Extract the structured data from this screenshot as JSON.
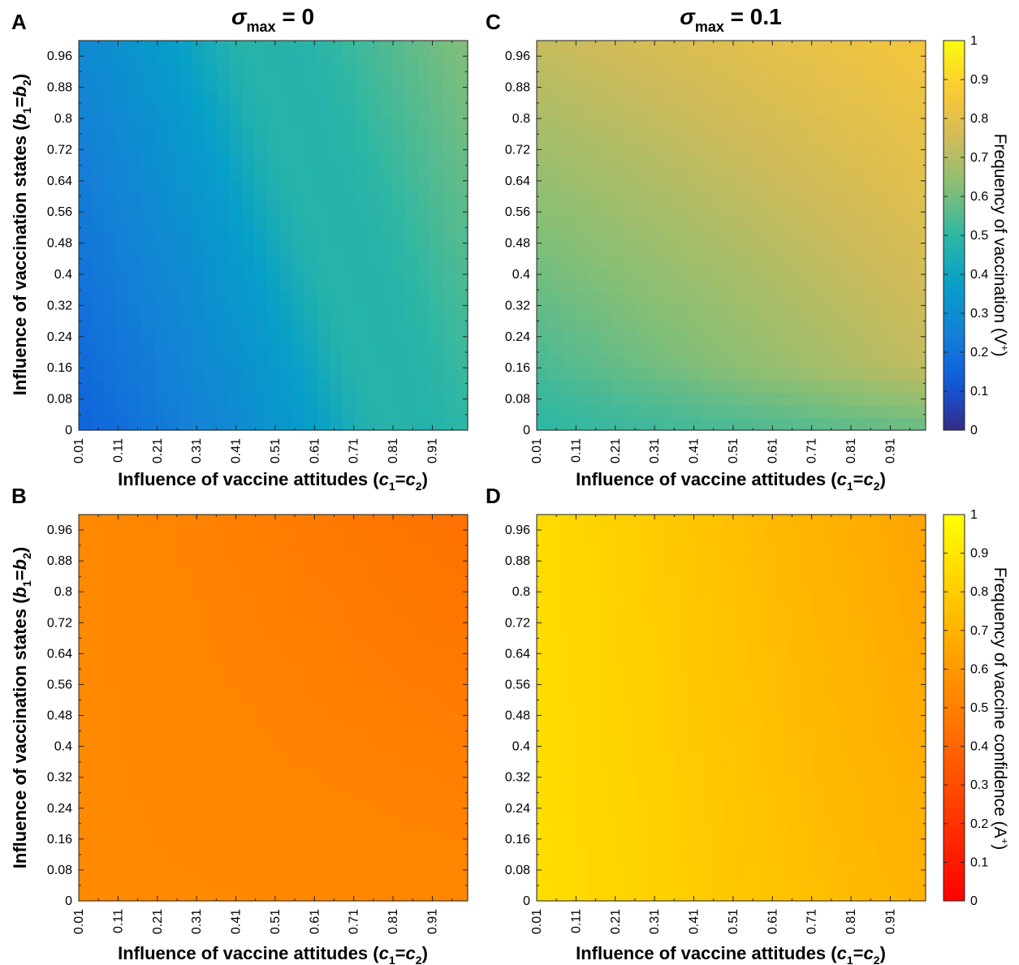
{
  "column_titles": [
    {
      "symbol": "σ",
      "subscript": "max",
      "rest": " = 0"
    },
    {
      "symbol": "σ",
      "subscript": "max",
      "rest": " = 0.1"
    }
  ],
  "panel_letters": [
    "A",
    "B",
    "C",
    "D"
  ],
  "xlabel": {
    "prefix": "Influence of vaccine attitudes (",
    "var1": "c",
    "sub1": "1",
    "eq": "=",
    "var2": "c",
    "sub2": "2",
    "suffix": ")"
  },
  "ylabel": {
    "prefix": "Influence of vaccination states (",
    "var1": "b",
    "sub1": "1",
    "eq": "=",
    "var2": "b",
    "sub2": "2",
    "suffix": ")"
  },
  "xticks": [
    "0.01",
    "0.11",
    "0.21",
    "0.31",
    "0.41",
    "0.51",
    "0.61",
    "0.71",
    "0.81",
    "0.91"
  ],
  "yticks": [
    "0",
    "0.08",
    "0.16",
    "0.24",
    "0.32",
    "0.4",
    "0.48",
    "0.56",
    "0.64",
    "0.72",
    "0.8",
    "0.88",
    "0.96"
  ],
  "colorbars": [
    {
      "label": "Frequency of vaccination (V",
      "label_sup": "+",
      "label_end": ")",
      "colormap": "parula",
      "ticks": [
        "0",
        "0.1",
        "0.2",
        "0.3",
        "0.4",
        "0.5",
        "0.6",
        "0.7",
        "0.8",
        "0.9",
        "1"
      ]
    },
    {
      "label": "Frequency of vaccine confidence (A",
      "label_sup": "+",
      "label_end": ")",
      "colormap": "autumn",
      "ticks": [
        "0",
        "0.1",
        "0.2",
        "0.3",
        "0.4",
        "0.5",
        "0.6",
        "0.7",
        "0.8",
        "0.9",
        "1"
      ]
    }
  ],
  "chart_data": [
    {
      "panel": "A",
      "type": "heatmap",
      "colormap": "parula",
      "zlim": [
        0,
        1
      ],
      "x_range": [
        0.01,
        1.0
      ],
      "y_range": [
        0,
        1.0
      ],
      "corners": {
        "bottom_left": 0.15,
        "top_left": 0.28,
        "bottom_right": 0.5,
        "top_right": 0.62
      },
      "ridge": {
        "value": 0.52,
        "x_at_bottom": 0.78,
        "x_at_top": 0.42,
        "width": 0.12
      }
    },
    {
      "panel": "B",
      "type": "heatmap",
      "colormap": "autumn",
      "zlim": [
        0,
        1
      ],
      "x_range": [
        0.01,
        1.0
      ],
      "y_range": [
        0,
        1.0
      ],
      "corners": {
        "bottom_left": 0.54,
        "top_left": 0.54,
        "bottom_right": 0.53,
        "top_right": 0.44
      }
    },
    {
      "panel": "C",
      "type": "heatmap",
      "colormap": "parula",
      "zlim": [
        0,
        1
      ],
      "x_range": [
        0.01,
        1.0
      ],
      "y_range": [
        0,
        1.0
      ],
      "corners": {
        "bottom_left": 0.5,
        "top_left": 0.73,
        "bottom_right": 0.7,
        "top_right": 0.85
      },
      "low_band": {
        "value": 0.5,
        "y_max": 0.16
      }
    },
    {
      "panel": "D",
      "type": "heatmap",
      "colormap": "autumn",
      "zlim": [
        0,
        1
      ],
      "x_range": [
        0.01,
        1.0
      ],
      "y_range": [
        0,
        1.0
      ],
      "corners": {
        "bottom_left": 0.87,
        "top_left": 0.86,
        "bottom_right": 0.7,
        "top_right": 0.64
      }
    }
  ]
}
